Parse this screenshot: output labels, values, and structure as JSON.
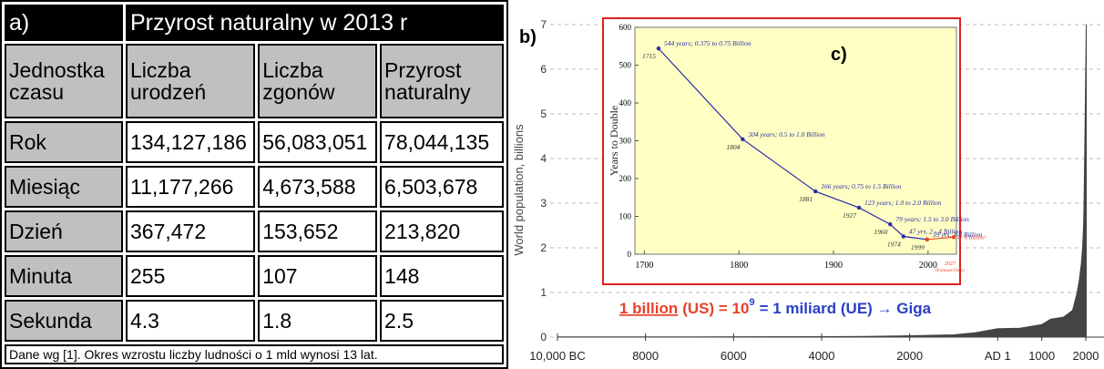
{
  "table": {
    "label": "a)",
    "title": "Przyrost naturalny w 2013 r",
    "header": [
      "Jednostka czasu",
      "Liczba urodzeń",
      "Liczba zgonów",
      "Przyrost naturalny"
    ],
    "rows": [
      [
        "Rok",
        "134,127,186",
        "56,083,051",
        "78,044,135"
      ],
      [
        "Miesiąc",
        "11,177,266",
        "4,673,588",
        "6,503,678"
      ],
      [
        "Dzień",
        "367,472",
        "153,652",
        "213,820"
      ],
      [
        "Minuta",
        "255",
        "107",
        "148"
      ],
      [
        "Sekunda",
        "4.3",
        "1.8",
        "2.5"
      ]
    ],
    "footer": "Dane wg [1]. Okres wzrostu liczby ludności o 1 mld wynosi 13 lat."
  },
  "chart_data": [
    {
      "type": "area",
      "label": "b)",
      "ylabel": "World population, billions",
      "xlim": [
        -10000,
        2000
      ],
      "ylim": [
        0,
        7
      ],
      "yticks": [
        0,
        1,
        2,
        3,
        4,
        5,
        6,
        7
      ],
      "xticks": [
        {
          "value": -10000,
          "label": "10,000 BC"
        },
        {
          "value": -8000,
          "label": "8000"
        },
        {
          "value": -6000,
          "label": "6000"
        },
        {
          "value": -4000,
          "label": "4000"
        },
        {
          "value": -2000,
          "label": "2000"
        },
        {
          "value": 0,
          "label": "AD 1"
        },
        {
          "value": 1000,
          "label": "1000"
        },
        {
          "value": 2000,
          "label": "2000"
        }
      ],
      "grid": true,
      "series": [
        {
          "color": "#444444",
          "x": [
            -10000,
            -8000,
            -6000,
            -4000,
            -3000,
            -2000,
            -1000,
            -500,
            0,
            500,
            1000,
            1200,
            1500,
            1700,
            1800,
            1850,
            1900,
            1927,
            1950,
            1960,
            1974,
            1987,
            1999,
            2011
          ],
          "values": [
            0.004,
            0.005,
            0.007,
            0.01,
            0.015,
            0.03,
            0.05,
            0.1,
            0.19,
            0.2,
            0.28,
            0.4,
            0.45,
            0.6,
            0.98,
            1.26,
            1.65,
            2,
            2.5,
            3,
            4,
            5,
            6,
            7
          ]
        }
      ],
      "annotation": [
        "1 billion",
        "(US) = 10",
        "9",
        "= 1 miliard (UE) → Giga"
      ]
    },
    {
      "type": "line",
      "label": "c)",
      "ylabel": "Years to Double",
      "xlim": [
        1690,
        2030
      ],
      "ylim": [
        0,
        600
      ],
      "yticks": [
        0,
        100,
        200,
        300,
        400,
        500,
        600
      ],
      "xticks": [
        1700,
        1800,
        1900,
        2000
      ],
      "series": [
        {
          "color": "#2b2ba8",
          "x": [
            1715,
            1804,
            1881,
            1927,
            1960,
            1974,
            1999
          ],
          "values": [
            544,
            304,
            166,
            123,
            79,
            47,
            39
          ],
          "value_labels": [
            "544 years; 0.375 to 0.75 Billion",
            "304 years; 0.5 to 1.0 Billion",
            "166 years; 0.75 to 1.5 Billion",
            "123 years; 1.0 to 2.0 Billion",
            "79 years; 1.5 to 3.0 Billion",
            "47 yrs, 2 - 4 Billion",
            "39 yrs, 3-6 Billion"
          ]
        },
        {
          "color": "#ee4422",
          "x": [
            1999,
            2027
          ],
          "values": [
            39,
            45
          ]
        }
      ],
      "annotations": [
        "4 - 8 Billion?",
        "(Forecast Only)"
      ]
    }
  ]
}
